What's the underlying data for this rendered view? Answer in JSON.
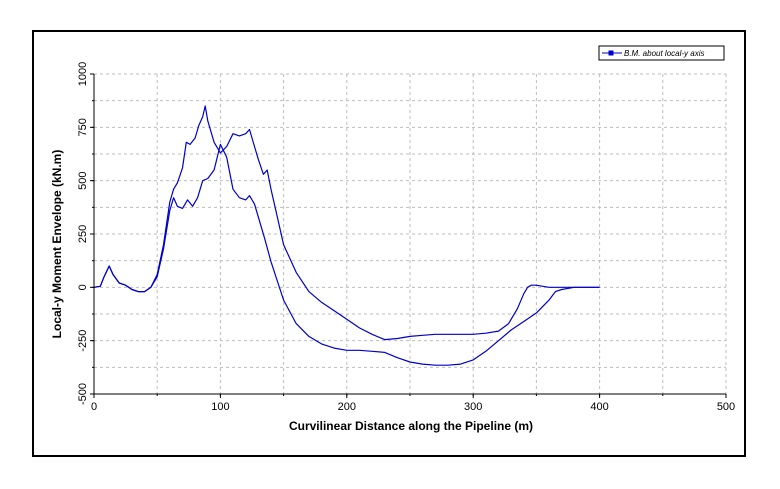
{
  "chart_data": {
    "type": "line",
    "title": "",
    "xlabel": "Curvilinear Distance along the Pipeline (m)",
    "ylabel": "Local-y Moment Envelope (kN.m)",
    "xlim": [
      0,
      500
    ],
    "ylim": [
      -500,
      1000
    ],
    "x_ticks": [
      "0",
      "100",
      "200",
      "300",
      "400",
      "500"
    ],
    "y_ticks": [
      "-500",
      "-250",
      "0",
      "250",
      "500",
      "750",
      "1000"
    ],
    "grid": true,
    "legend_position": "top-right",
    "legend": [
      "B.M. about local-y axis"
    ],
    "series": [
      {
        "name": "B.M. about local-y axis",
        "color": "#0000cc",
        "role": "upper",
        "x": [
          0,
          5,
          8,
          12,
          15,
          20,
          25,
          30,
          35,
          40,
          45,
          50,
          55,
          60,
          63,
          66,
          70,
          73,
          76,
          80,
          83,
          86,
          88,
          90,
          95,
          100,
          105,
          110,
          115,
          120,
          123,
          127,
          130,
          134,
          137,
          140,
          145,
          150,
          160,
          170,
          180,
          190,
          200,
          210,
          220,
          230,
          240,
          250,
          260,
          270,
          280,
          290,
          300,
          310,
          320,
          328,
          335,
          340,
          343,
          346,
          350,
          355,
          360,
          370,
          380,
          390,
          400
        ],
        "y": [
          0,
          5,
          50,
          100,
          60,
          20,
          10,
          -10,
          -20,
          -20,
          0,
          60,
          200,
          400,
          460,
          490,
          560,
          680,
          670,
          700,
          760,
          800,
          850,
          780,
          680,
          630,
          660,
          720,
          710,
          720,
          740,
          660,
          600,
          530,
          550,
          460,
          330,
          200,
          70,
          -20,
          -70,
          -110,
          -150,
          -190,
          -220,
          -245,
          -240,
          -230,
          -225,
          -220,
          -220,
          -220,
          -220,
          -215,
          -205,
          -170,
          -100,
          -30,
          0,
          10,
          10,
          5,
          0,
          0,
          0,
          0,
          0
        ]
      },
      {
        "name": "",
        "color": "#0000cc",
        "role": "lower",
        "x": [
          0,
          5,
          8,
          12,
          15,
          20,
          25,
          30,
          35,
          40,
          45,
          50,
          55,
          60,
          63,
          66,
          70,
          74,
          78,
          82,
          86,
          90,
          95,
          100,
          105,
          110,
          115,
          120,
          123,
          127,
          130,
          135,
          140,
          145,
          150,
          160,
          170,
          180,
          190,
          200,
          210,
          220,
          230,
          240,
          250,
          260,
          270,
          280,
          290,
          300,
          310,
          320,
          330,
          340,
          350,
          360,
          365,
          370,
          380,
          390,
          400
        ],
        "y": [
          0,
          5,
          50,
          100,
          60,
          20,
          10,
          -10,
          -20,
          -20,
          0,
          50,
          180,
          360,
          420,
          380,
          370,
          410,
          380,
          420,
          500,
          510,
          550,
          670,
          610,
          460,
          420,
          410,
          430,
          390,
          330,
          230,
          120,
          30,
          -60,
          -170,
          -230,
          -265,
          -285,
          -295,
          -295,
          -300,
          -305,
          -330,
          -350,
          -360,
          -365,
          -365,
          -360,
          -340,
          -300,
          -250,
          -200,
          -160,
          -120,
          -60,
          -20,
          -10,
          0,
          0,
          0
        ]
      }
    ]
  }
}
